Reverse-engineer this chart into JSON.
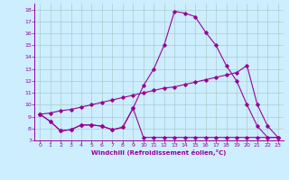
{
  "xlabel": "Windchill (Refroidissement éolien,°C)",
  "x_ticks": [
    0,
    1,
    2,
    3,
    4,
    5,
    6,
    7,
    8,
    9,
    10,
    11,
    12,
    13,
    14,
    15,
    16,
    17,
    18,
    19,
    20,
    21,
    22,
    23
  ],
  "ylim": [
    7.0,
    18.5
  ],
  "xlim": [
    -0.5,
    23.5
  ],
  "y_ticks": [
    7,
    8,
    9,
    10,
    11,
    12,
    13,
    14,
    15,
    16,
    17,
    18
  ],
  "bg_color": "#cceeff",
  "grid_color": "#aacccc",
  "line_color": "#990099",
  "line1_x": [
    0,
    1,
    2,
    3,
    4,
    5,
    6,
    7,
    8,
    9,
    10,
    11,
    12,
    13,
    14,
    15,
    16,
    17,
    18,
    19,
    20,
    21,
    22,
    23
  ],
  "line1_y": [
    9.2,
    8.6,
    7.8,
    7.9,
    8.3,
    8.3,
    8.2,
    7.9,
    8.1,
    9.7,
    7.25,
    7.25,
    7.25,
    7.25,
    7.25,
    7.25,
    7.25,
    7.25,
    7.25,
    7.25,
    7.25,
    7.25,
    7.25,
    7.25
  ],
  "line2_x": [
    0,
    1,
    2,
    3,
    4,
    5,
    6,
    7,
    8,
    9,
    10,
    11,
    12,
    13,
    14,
    15,
    16,
    17,
    18,
    19,
    20,
    21,
    22,
    23
  ],
  "line2_y": [
    9.2,
    8.6,
    7.8,
    7.9,
    8.3,
    8.3,
    8.2,
    7.9,
    8.1,
    9.7,
    11.6,
    13.0,
    15.0,
    17.85,
    17.7,
    17.4,
    16.1,
    15.0,
    13.3,
    12.0,
    10.0,
    8.2,
    7.25,
    7.25
  ],
  "line3_x": [
    0,
    1,
    2,
    3,
    4,
    5,
    6,
    7,
    8,
    9,
    10,
    11,
    12,
    13,
    14,
    15,
    16,
    17,
    18,
    19,
    20,
    21,
    22,
    23
  ],
  "line3_y": [
    9.2,
    9.3,
    9.5,
    9.6,
    9.8,
    10.0,
    10.2,
    10.4,
    10.6,
    10.8,
    11.0,
    11.2,
    11.4,
    11.5,
    11.7,
    11.9,
    12.1,
    12.3,
    12.5,
    12.7,
    13.3,
    10.0,
    8.2,
    7.25
  ]
}
